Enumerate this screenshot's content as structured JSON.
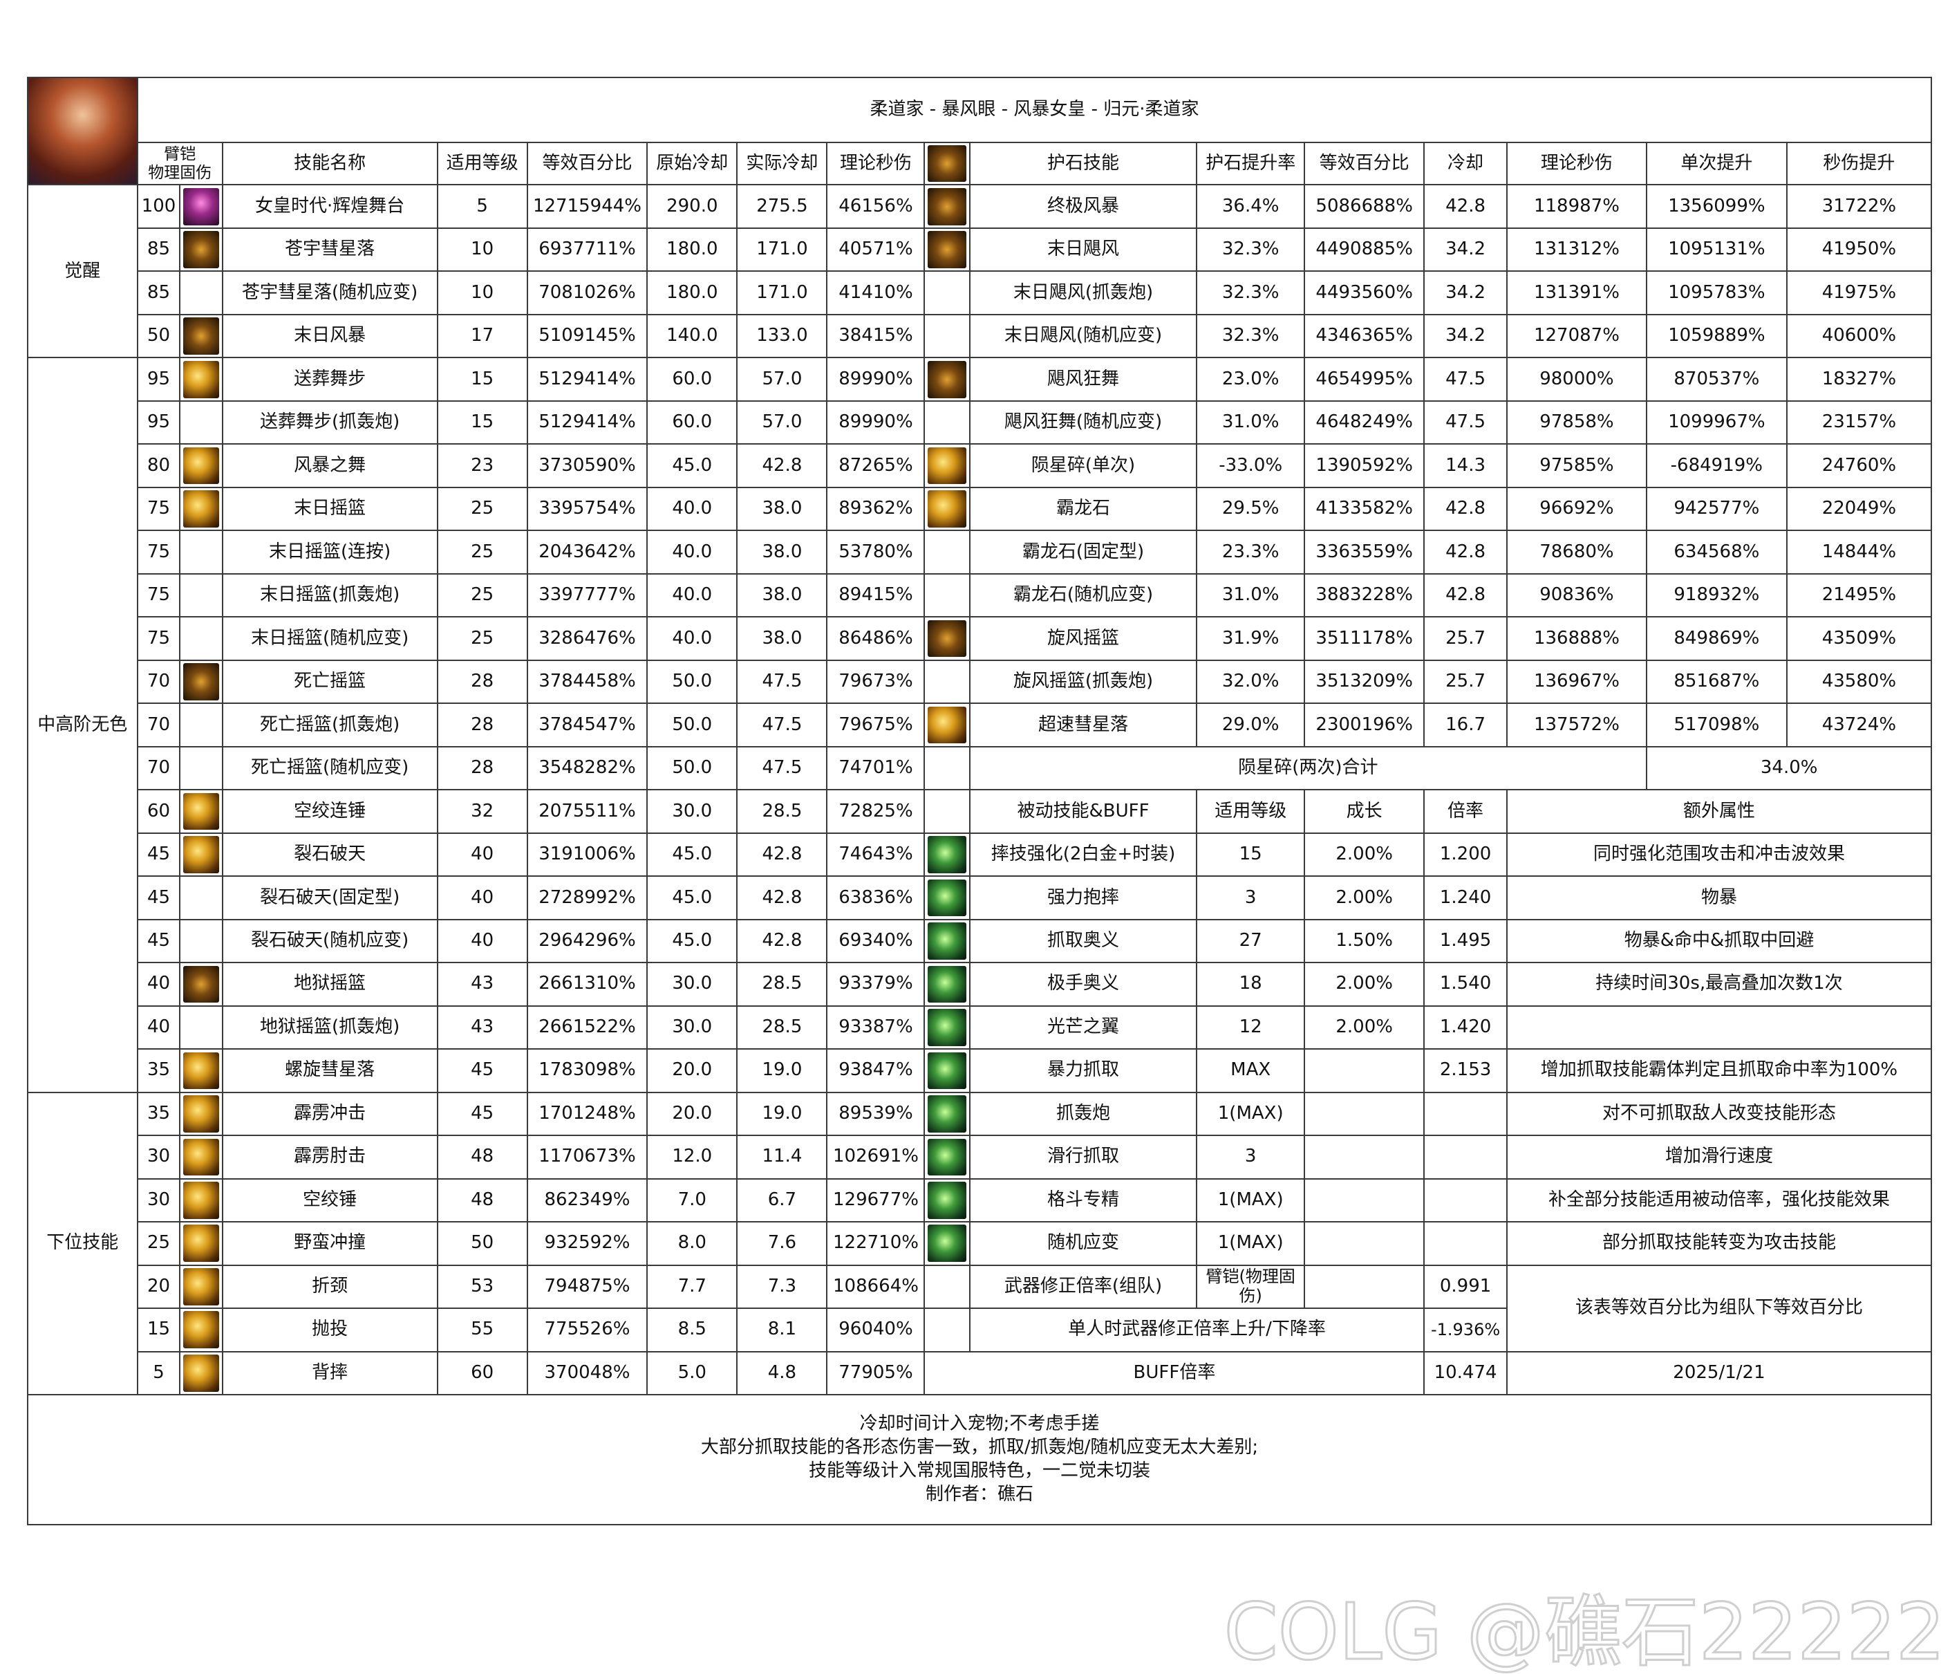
{
  "header": {
    "title": "柔道家 - 暴风眼 - 风暴女皇 - 归元·柔道家",
    "left_columns": [
      [
        "臂铠",
        "物理固伤"
      ],
      "技能名称",
      "适用等级",
      "等效百分比",
      "原始冷却",
      "实际冷却",
      "理论秒伤"
    ],
    "right_columns": [
      "护石技能",
      "护石提升率",
      "等效百分比",
      "冷却",
      "理论秒伤",
      "单次提升",
      "秒伤提升"
    ]
  },
  "groups": [
    "觉醒",
    "中高阶无色",
    "下位技能"
  ],
  "skills": [
    [
      "100",
      "女皇时代·辉煌舞台",
      "5",
      "12715944%",
      "290.0",
      "275.5",
      "46156%"
    ],
    [
      "85",
      "苍宇彗星落",
      "10",
      "6937711%",
      "180.0",
      "171.0",
      "40571%"
    ],
    [
      "85",
      "苍宇彗星落(随机应变)",
      "10",
      "7081026%",
      "180.0",
      "171.0",
      "41410%"
    ],
    [
      "50",
      "末日风暴",
      "17",
      "5109145%",
      "140.0",
      "133.0",
      "38415%"
    ],
    [
      "95",
      "送葬舞步",
      "15",
      "5129414%",
      "60.0",
      "57.0",
      "89990%"
    ],
    [
      "95",
      "送葬舞步(抓轰炮)",
      "15",
      "5129414%",
      "60.0",
      "57.0",
      "89990%"
    ],
    [
      "80",
      "风暴之舞",
      "23",
      "3730590%",
      "45.0",
      "42.8",
      "87265%"
    ],
    [
      "75",
      "末日摇篮",
      "25",
      "3395754%",
      "40.0",
      "38.0",
      "89362%"
    ],
    [
      "75",
      "末日摇篮(连按)",
      "25",
      "2043642%",
      "40.0",
      "38.0",
      "53780%"
    ],
    [
      "75",
      "末日摇篮(抓轰炮)",
      "25",
      "3397777%",
      "40.0",
      "38.0",
      "89415%"
    ],
    [
      "75",
      "末日摇篮(随机应变)",
      "25",
      "3286476%",
      "40.0",
      "38.0",
      "86486%"
    ],
    [
      "70",
      "死亡摇篮",
      "28",
      "3784458%",
      "50.0",
      "47.5",
      "79673%"
    ],
    [
      "70",
      "死亡摇篮(抓轰炮)",
      "28",
      "3784547%",
      "50.0",
      "47.5",
      "79675%"
    ],
    [
      "70",
      "死亡摇篮(随机应变)",
      "28",
      "3548282%",
      "50.0",
      "47.5",
      "74701%"
    ],
    [
      "60",
      "空绞连锤",
      "32",
      "2075511%",
      "30.0",
      "28.5",
      "72825%"
    ],
    [
      "45",
      "裂石破天",
      "40",
      "3191006%",
      "45.0",
      "42.8",
      "74643%"
    ],
    [
      "45",
      "裂石破天(固定型)",
      "40",
      "2728992%",
      "45.0",
      "42.8",
      "63836%"
    ],
    [
      "45",
      "裂石破天(随机应变)",
      "40",
      "2964296%",
      "45.0",
      "42.8",
      "69340%"
    ],
    [
      "40",
      "地狱摇篮",
      "43",
      "2661310%",
      "30.0",
      "28.5",
      "93379%"
    ],
    [
      "40",
      "地狱摇篮(抓轰炮)",
      "43",
      "2661522%",
      "30.0",
      "28.5",
      "93387%"
    ],
    [
      "35",
      "螺旋彗星落",
      "45",
      "1783098%",
      "20.0",
      "19.0",
      "93847%"
    ],
    [
      "35",
      "霹雳冲击",
      "45",
      "1701248%",
      "20.0",
      "19.0",
      "89539%"
    ],
    [
      "30",
      "霹雳肘击",
      "48",
      "1170673%",
      "12.0",
      "11.4",
      "102691%"
    ],
    [
      "30",
      "空绞锤",
      "48",
      "862349%",
      "7.0",
      "6.7",
      "129677%"
    ],
    [
      "25",
      "野蛮冲撞",
      "50",
      "932592%",
      "8.0",
      "7.6",
      "122710%"
    ],
    [
      "20",
      "折颈",
      "53",
      "794875%",
      "7.7",
      "7.3",
      "108664%"
    ],
    [
      "15",
      "抛投",
      "55",
      "775526%",
      "8.5",
      "8.1",
      "96040%"
    ],
    [
      "5",
      "背摔",
      "60",
      "370048%",
      "5.0",
      "4.8",
      "77905%"
    ]
  ],
  "talismans": [
    [
      "终极风暴",
      "36.4%",
      "5086688%",
      "42.8",
      "118987%",
      "1356099%",
      "31722%"
    ],
    [
      "末日飓风",
      "32.3%",
      "4490885%",
      "34.2",
      "131312%",
      "1095131%",
      "41950%"
    ],
    [
      "末日飓风(抓轰炮)",
      "32.3%",
      "4493560%",
      "34.2",
      "131391%",
      "1095783%",
      "41975%"
    ],
    [
      "末日飓风(随机应变)",
      "32.3%",
      "4346365%",
      "34.2",
      "127087%",
      "1059889%",
      "40600%"
    ],
    [
      "飓风狂舞",
      "23.0%",
      "4654995%",
      "47.5",
      "98000%",
      "870537%",
      "18327%"
    ],
    [
      "飓风狂舞(随机应变)",
      "31.0%",
      "4648249%",
      "47.5",
      "97858%",
      "1099967%",
      "23157%"
    ],
    [
      "陨星碎(单次)",
      "-33.0%",
      "1390592%",
      "14.3",
      "97585%",
      "-684919%",
      "24760%"
    ],
    [
      "霸龙石",
      "29.5%",
      "4133582%",
      "42.8",
      "96692%",
      "942577%",
      "22049%"
    ],
    [
      "霸龙石(固定型)",
      "23.3%",
      "3363559%",
      "42.8",
      "78680%",
      "634568%",
      "14844%"
    ],
    [
      "霸龙石(随机应变)",
      "31.0%",
      "3883228%",
      "42.8",
      "90836%",
      "918932%",
      "21495%"
    ],
    [
      "旋风摇篮",
      "31.9%",
      "3511178%",
      "25.7",
      "136888%",
      "849869%",
      "43509%"
    ],
    [
      "旋风摇篮(抓轰炮)",
      "32.0%",
      "3513209%",
      "25.7",
      "136967%",
      "851687%",
      "43580%"
    ],
    [
      "超速彗星落",
      "29.0%",
      "2300196%",
      "16.7",
      "137572%",
      "517098%",
      "43724%"
    ]
  ],
  "talisman_total": {
    "label": "陨星碎(两次)合计",
    "value": "34.0%"
  },
  "passive_header": [
    "被动技能&BUFF",
    "适用等级",
    "成长",
    "倍率",
    "额外属性"
  ],
  "passives": [
    [
      "摔技强化(2白金+时装)",
      "15",
      "2.00%",
      "1.200",
      "同时强化范围攻击和冲击波效果"
    ],
    [
      "强力抱摔",
      "3",
      "2.00%",
      "1.240",
      "物暴"
    ],
    [
      "抓取奥义",
      "27",
      "1.50%",
      "1.495",
      "物暴&命中&抓取中回避"
    ],
    [
      "极手奥义",
      "18",
      "2.00%",
      "1.540",
      "持续时间30s,最高叠加次数1次"
    ],
    [
      "光芒之翼",
      "12",
      "2.00%",
      "1.420",
      null
    ],
    [
      "暴力抓取",
      "MAX",
      null,
      "2.153",
      "增加抓取技能霸体判定且抓取命中率为100%"
    ],
    [
      "抓轰炮",
      "1(MAX)",
      null,
      null,
      "对不可抓取敌人改变技能形态"
    ],
    [
      "滑行抓取",
      "3",
      null,
      null,
      "增加滑行速度"
    ],
    [
      "格斗专精",
      "1(MAX)",
      null,
      null,
      "补全部分技能适用被动倍率，强化技能效果"
    ],
    [
      "随机应变",
      "1(MAX)",
      null,
      null,
      "部分抓取技能转变为攻击技能"
    ]
  ],
  "weapon": {
    "label": "武器修正倍率(组队)",
    "type": "臂铠(物理固伤)",
    "value": "0.991"
  },
  "solo": {
    "label": "单人时武器修正倍率上升/下降率",
    "value": "-1.936%"
  },
  "buff": {
    "label": "BUFF倍率",
    "value": "10.474"
  },
  "note": "该表等效百分比为组队下等效百分比",
  "date": "2025/1/21",
  "footer": [
    "冷却时间计入宠物;不考虑手搓",
    "大部分抓取技能的各形态伤害一致，抓取/抓轰炮/随机应变无太大差别;",
    "技能等级计入常规国服特色，一二觉未切装",
    "制作者：礁石"
  ],
  "watermark": "COLG @礁石22222"
}
